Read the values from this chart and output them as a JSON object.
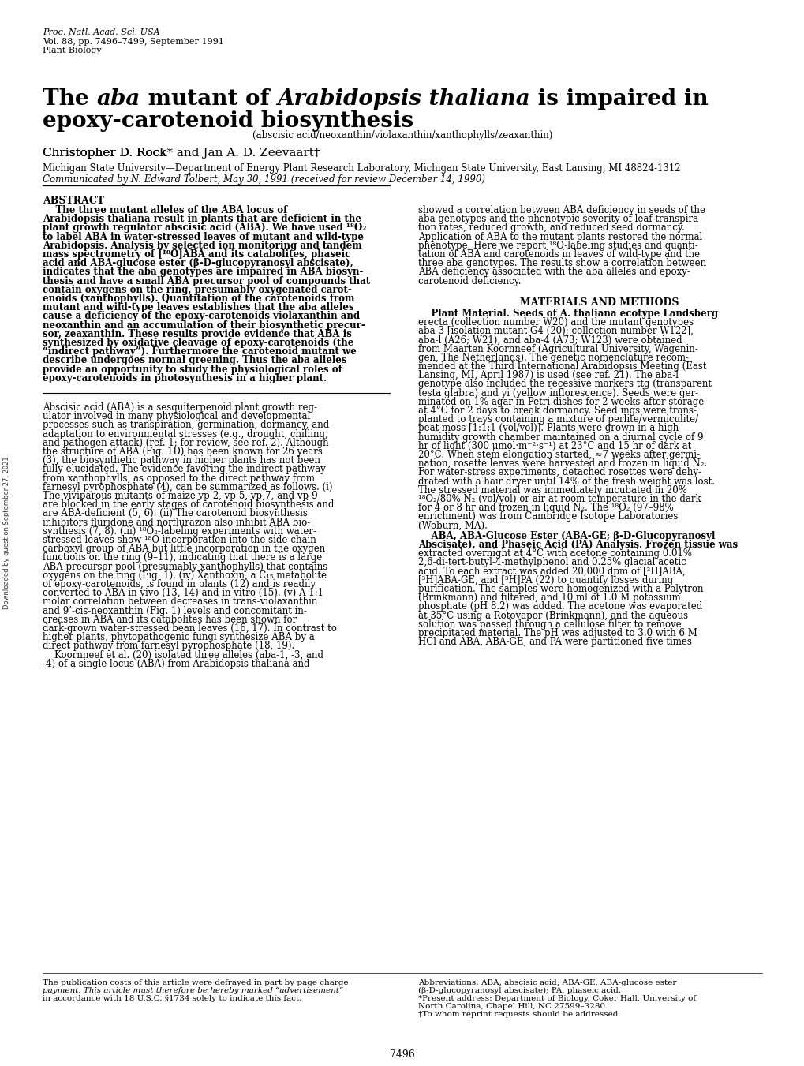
{
  "background_color": "#ffffff",
  "page_width": 10.2,
  "page_height": 13.51,
  "journal_line1": "Proc. Natl. Acad. Sci. USA",
  "journal_line2": "Vol. 88, pp. 7496–7499, September 1991",
  "journal_line3": "Plant Biology",
  "title_line2": "epoxy-carotenoid biosynthesis",
  "subtitle": "(abscisic acid/neoxanthin/violaxanthin/xanthophylls/zeaxanthin)",
  "affiliation": "Michigan State University—Department of Energy Plant Research Laboratory, Michigan State University, East Lansing, MI 48824-1312",
  "communicated": "Communicated by N. Edward Tolbert, May 30, 1991 (received for review December 14, 1990)",
  "materials_methods_header": "MATERIALS AND METHODS",
  "page_number": "7496",
  "watermark_text": "Downloaded by guest on September 27, 2021",
  "abs_lines_left": [
    "    The three mutant alleles of the ABA locus of",
    "Arabidopsis thaliana result in plants that are deficient in the",
    "plant growth regulator abscisic acid (ABA). We have used ¹⁸O₂",
    "to label ABA in water-stressed leaves of mutant and wild-type",
    "Arabidopsis. Analysis by selected ion monitoring and tandem",
    "mass spectrometry of [¹⁸O]ABA and its catabolites, phaseic",
    "acid and ABA-glucose ester (β-D-glucopyranosyl abscisate),",
    "indicates that the aba genotypes are impaired in ABA biosyn-",
    "thesis and have a small ABA precursor pool of compounds that",
    "contain oxygens on the ring, presumably oxygenated carot-",
    "enoids (xanthophylls). Quantitation of the carotenoids from",
    "mutant and wild-type leaves establishes that the aba alleles",
    "cause a deficiency of the epoxy-carotenoids violaxanthin and",
    "neoxanthin and an accumulation of their biosynthetic precur-",
    "sor, zeaxanthin. These results provide evidence that ABA is",
    "synthesized by oxidative cleavage of epoxy-carotenoids (the",
    "“indirect pathway”). Furthermore the carotenoid mutant we",
    "describe undergoes normal greening. Thus the aba alleles",
    "provide an opportunity to study the physiological roles of",
    "epoxy-carotenoids in photosynthesis in a higher plant."
  ],
  "abs_lines_right": [
    "showed a correlation between ABA deficiency in seeds of the",
    "aba genotypes and the phenotypic severity of leaf transpira-",
    "tion rates, reduced growth, and reduced seed dormancy.",
    "Application of ABA to the mutant plants restored the normal",
    "phenotype. Here we report ¹⁸O-labeling studies and quanti-",
    "tation of ABA and carotenoids in leaves of wild-type and the",
    "three aba genotypes. The results show a correlation between",
    "ABA deficiency associated with the aba alleles and epoxy-",
    "carotenoid deficiency."
  ],
  "mm_lines": [
    "    Plant Material. Seeds of A. thaliana ecotype Landsberg",
    "erecta (collection number W20) and the mutant genotypes",
    "aba-3 [isolation mutant G4 (20); collection number W122],",
    "aba-l (A26; W21), and aba-4 (A73; W123) were obtained",
    "from Maarten Koornneef (Agricultural University, Wagenin-",
    "gen, The Netherlands). The genetic nomenclature recom-",
    "mended at the Third International Arabidopsis Meeting (East",
    "Lansing, MI, April 1987) is used (see ref. 21). The aba-l",
    "genotype also included the recessive markers ttg (transparent",
    "testa glabra) and yi (yellow inflorescence). Seeds were ger-",
    "minated on 1% agar in Petri dishes for 2 weeks after storage",
    "at 4°C for 2 days to break dormancy. Seedlings were trans-",
    "planted to trays containing a mixture of perlite/vermiculite/",
    "peat moss [1:1:1 (vol/vol)]. Plants were grown in a high-",
    "humidity growth chamber maintained on a diurnal cycle of 9",
    "hr of light (300 μmol·m⁻²·s⁻¹) at 23°C and 15 hr of dark at",
    "20°C. When stem elongation started, ≈7 weeks after germi-",
    "nation, rosette leaves were harvested and frozen in liquid N₂.",
    "For water-stress experiments, detached rosettes were dehy-",
    "drated with a hair dryer until 14% of the fresh weight was lost.",
    "The stressed material was immediately incubated in 20%",
    "¹⁸O₂/80% N₂ (vol/vol) or air at room temperature in the dark",
    "for 4 or 8 hr and frozen in liquid N₂. The ¹⁸O₂ (97–98%",
    "enrichment) was from Cambridge Isotope Laboratories",
    "(Woburn, MA)."
  ],
  "aba_lines": [
    "    ABA, ABA-Glucose Ester (ABA-GE; β-D-Glucopyranosyl",
    "Abscisate), and Phaseic Acid (PA) Analysis. Frozen tissue was",
    "extracted overnight at 4°C with acetone containing 0.01%",
    "2,6-di-tert-butyl-4-methylphenol and 0.25% glacial acetic",
    "acid. To each extract was added 20,000 dpm of [³H]ABA,",
    "[³H]ABA-GE, and [³H]PA (22) to quantify losses during",
    "purification. The samples were homogenized with a Polytron",
    "(Brinkmann) and filtered, and 10 ml of 1.0 M potassium",
    "phosphate (pH 8.2) was added. The acetone was evaporated",
    "at 35°C using a Rotovapor (Brinkmann), and the aqueous",
    "solution was passed through a cellulose filter to remove",
    "precipitated material. The pH was adjusted to 3.0 with 6 M",
    "HCl and ABA, ABA-GE, and PA were partitioned five times"
  ],
  "intro_lines": [
    "Abscisic acid (ABA) is a sesquiterpenoid plant growth reg-",
    "ulator involved in many physiological and developmental",
    "processes such as transpiration, germination, dormancy, and",
    "adaptation to environmental stresses (e.g., drought, chilling,",
    "and pathogen attack) (ref. 1; for review, see ref. 2). Although",
    "the structure of ABA (Fig. 1D) has been known for 26 years",
    "(3), the biosynthetic pathway in higher plants has not been",
    "fully elucidated. The evidence favoring the indirect pathway",
    "from xanthophylls, as opposed to the direct pathway from",
    "farnesyl pyrophosphate (4), can be summarized as follows. (i)",
    "The viviparous mutants of maize vp-2, vp-5, vp-7, and vp-9",
    "are blocked in the early stages of carotenoid biosynthesis and",
    "are ABA-deficient (5, 6). (ii) The carotenoid biosynthesis",
    "inhibitors fluridone and norflurazon also inhibit ABA bio-",
    "synthesis (7, 8). (iii) ¹⁸O₂-labeling experiments with water-",
    "stressed leaves show ¹⁸O incorporation into the side-chain",
    "carboxyl group of ABA but little incorporation in the oxygen",
    "functions on the ring (9–11), indicating that there is a large",
    "ABA precursor pool (presumably xanthophylls) that contains",
    "oxygens on the ring (Fig. 1). (iv) Xanthoxin, a C₁₅ metabolite",
    "of epoxy-carotenoids, is found in plants (12) and is readily",
    "converted to ABA in vivo (13, 14) and in vitro (15). (v) A 1:1",
    "molar correlation between decreases in trans-violaxanthin",
    "and 9’-cis-neoxanthin (Fig. 1) levels and concomitant in-",
    "creases in ABA and its catabolites has been shown for",
    "dark-grown water-stressed bean leaves (16, 17). In contrast to",
    "higher plants, phytopathogenic fungi synthesize ABA by a",
    "direct pathway from farnesyl pyrophosphate (18, 19).",
    "    Koornneef et al. (20) isolated three alleles (aba-1, -3, and",
    "-4) of a single locus (ABA) from Arabidopsis thaliana and"
  ],
  "pub_note_left": [
    "The publication costs of this article were defrayed in part by page charge",
    "payment. This article must therefore be hereby marked “advertisement”",
    "in accordance with 18 U.S.C. §1734 solely to indicate this fact."
  ],
  "fn_lines_right": [
    "Abbreviations: ABA, abscisic acid; ABA-GE, ABA-glucose ester",
    "(β-D-glucopyranosyl abscisate); PA, phaseic acid.",
    "*Present address: Department of Biology, Coker Hall, University of",
    "North Carolina, Chapel Hill, NC 27599–3280.",
    "†To whom reprint requests should be addressed."
  ]
}
